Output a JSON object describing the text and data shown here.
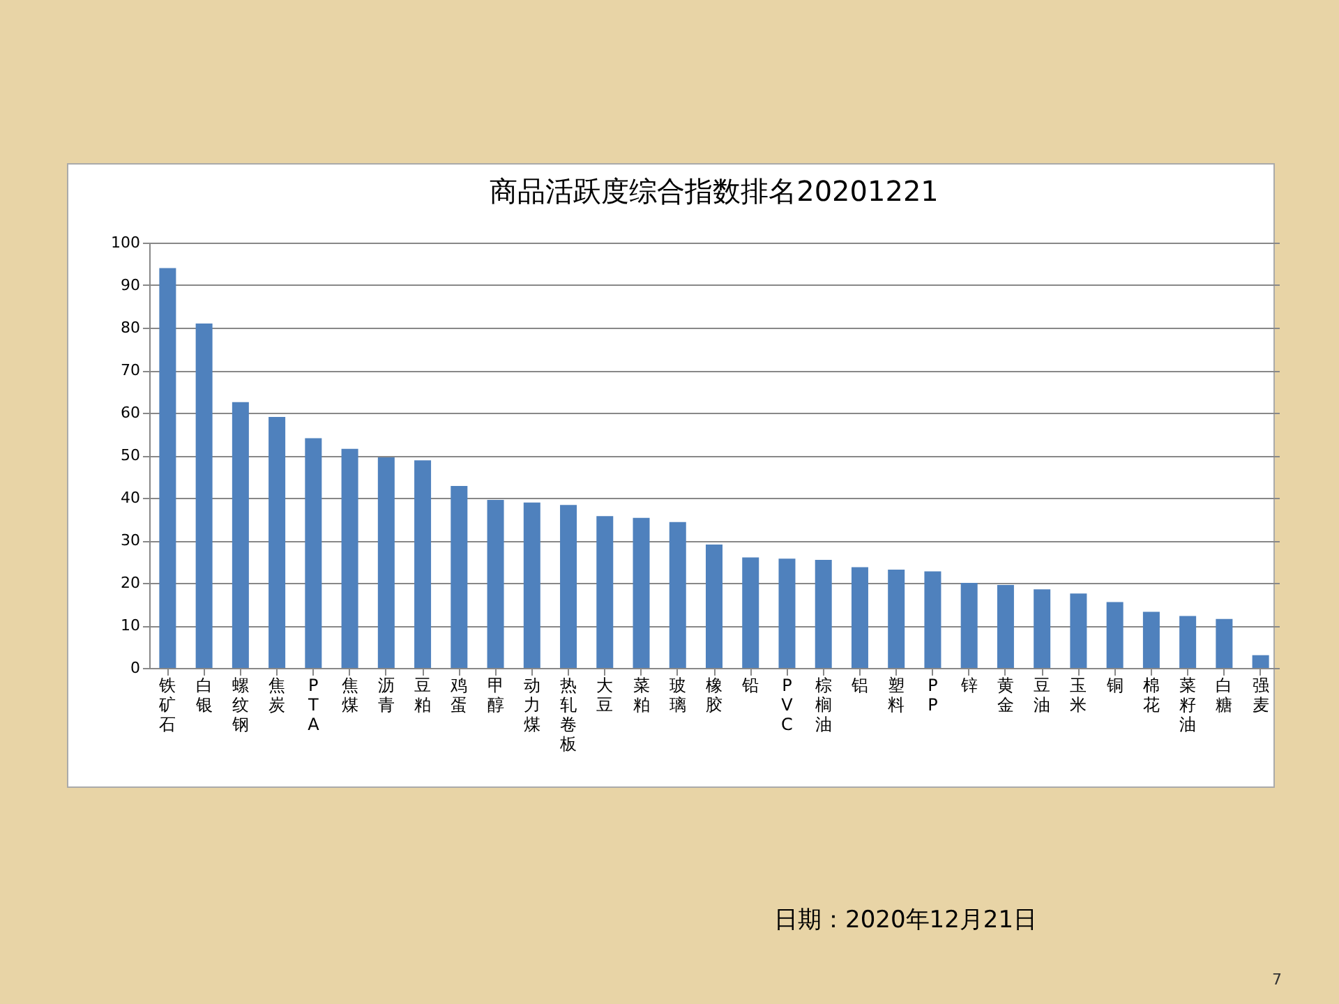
{
  "chart_data": {
    "type": "bar",
    "title": "商品活跃度综合指数排名20201221",
    "categories": [
      "铁矿石",
      "白银",
      "螺纹钢",
      "焦炭",
      "PTA",
      "焦煤",
      "沥青",
      "豆粕",
      "鸡蛋",
      "甲醇",
      "动力煤",
      "热轧卷板",
      "大豆",
      "菜粕",
      "玻璃",
      "橡胶",
      "铅",
      "PVC",
      "棕榈油",
      "铝",
      "塑料",
      "PP",
      "锌",
      "黄金",
      "豆油",
      "玉米",
      "铜",
      "棉花",
      "菜籽油",
      "白糖",
      "强麦"
    ],
    "values": [
      94,
      81,
      62.5,
      59,
      54,
      51.5,
      49.5,
      48.8,
      42.8,
      39.5,
      38.9,
      38.3,
      35.7,
      35.3,
      34.3,
      29,
      26,
      25.7,
      25.4,
      23.7,
      23.1,
      22.7,
      20,
      19.5,
      18.5,
      17.5,
      15.5,
      13.2,
      12.2,
      11.5,
      3
    ],
    "color": "#4f81bd",
    "ylim": [
      0,
      100
    ],
    "yticks": [
      0,
      10,
      20,
      30,
      40,
      50,
      60,
      70,
      80,
      90,
      100
    ],
    "grid": "y",
    "annotations": [
      "日期：2020年12月21日",
      "7"
    ]
  }
}
